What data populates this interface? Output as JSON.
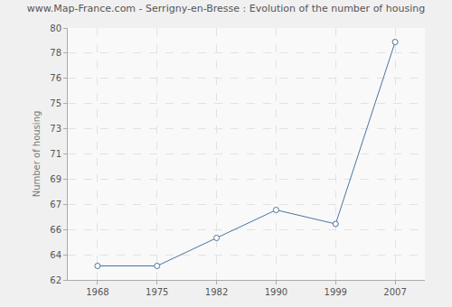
{
  "chart_data": {
    "type": "line",
    "title": "www.Map-France.com - Serrigny-en-Bresse : Evolution of the number of housing",
    "y_label": "Number of housing",
    "categories": [
      "1968",
      "1975",
      "1982",
      "1990",
      "1999",
      "2007"
    ],
    "values": [
      63,
      63,
      65,
      67,
      66,
      79
    ],
    "color": "#4a74a0",
    "marker": "circle",
    "ylim": [
      62,
      80
    ],
    "yticks": [
      62,
      {
        "value": 63.8,
        "label": "64"
      },
      {
        "value": 65.6,
        "label": "66"
      },
      {
        "value": 67.4,
        "label": "67"
      },
      {
        "value": 69.2,
        "label": "69"
      },
      71,
      {
        "value": 72.8,
        "label": "73"
      },
      {
        "value": 74.6,
        "label": "75"
      },
      {
        "value": 76.4,
        "label": "76"
      },
      {
        "value": 78.2,
        "label": "78"
      },
      80
    ],
    "grid": true
  }
}
